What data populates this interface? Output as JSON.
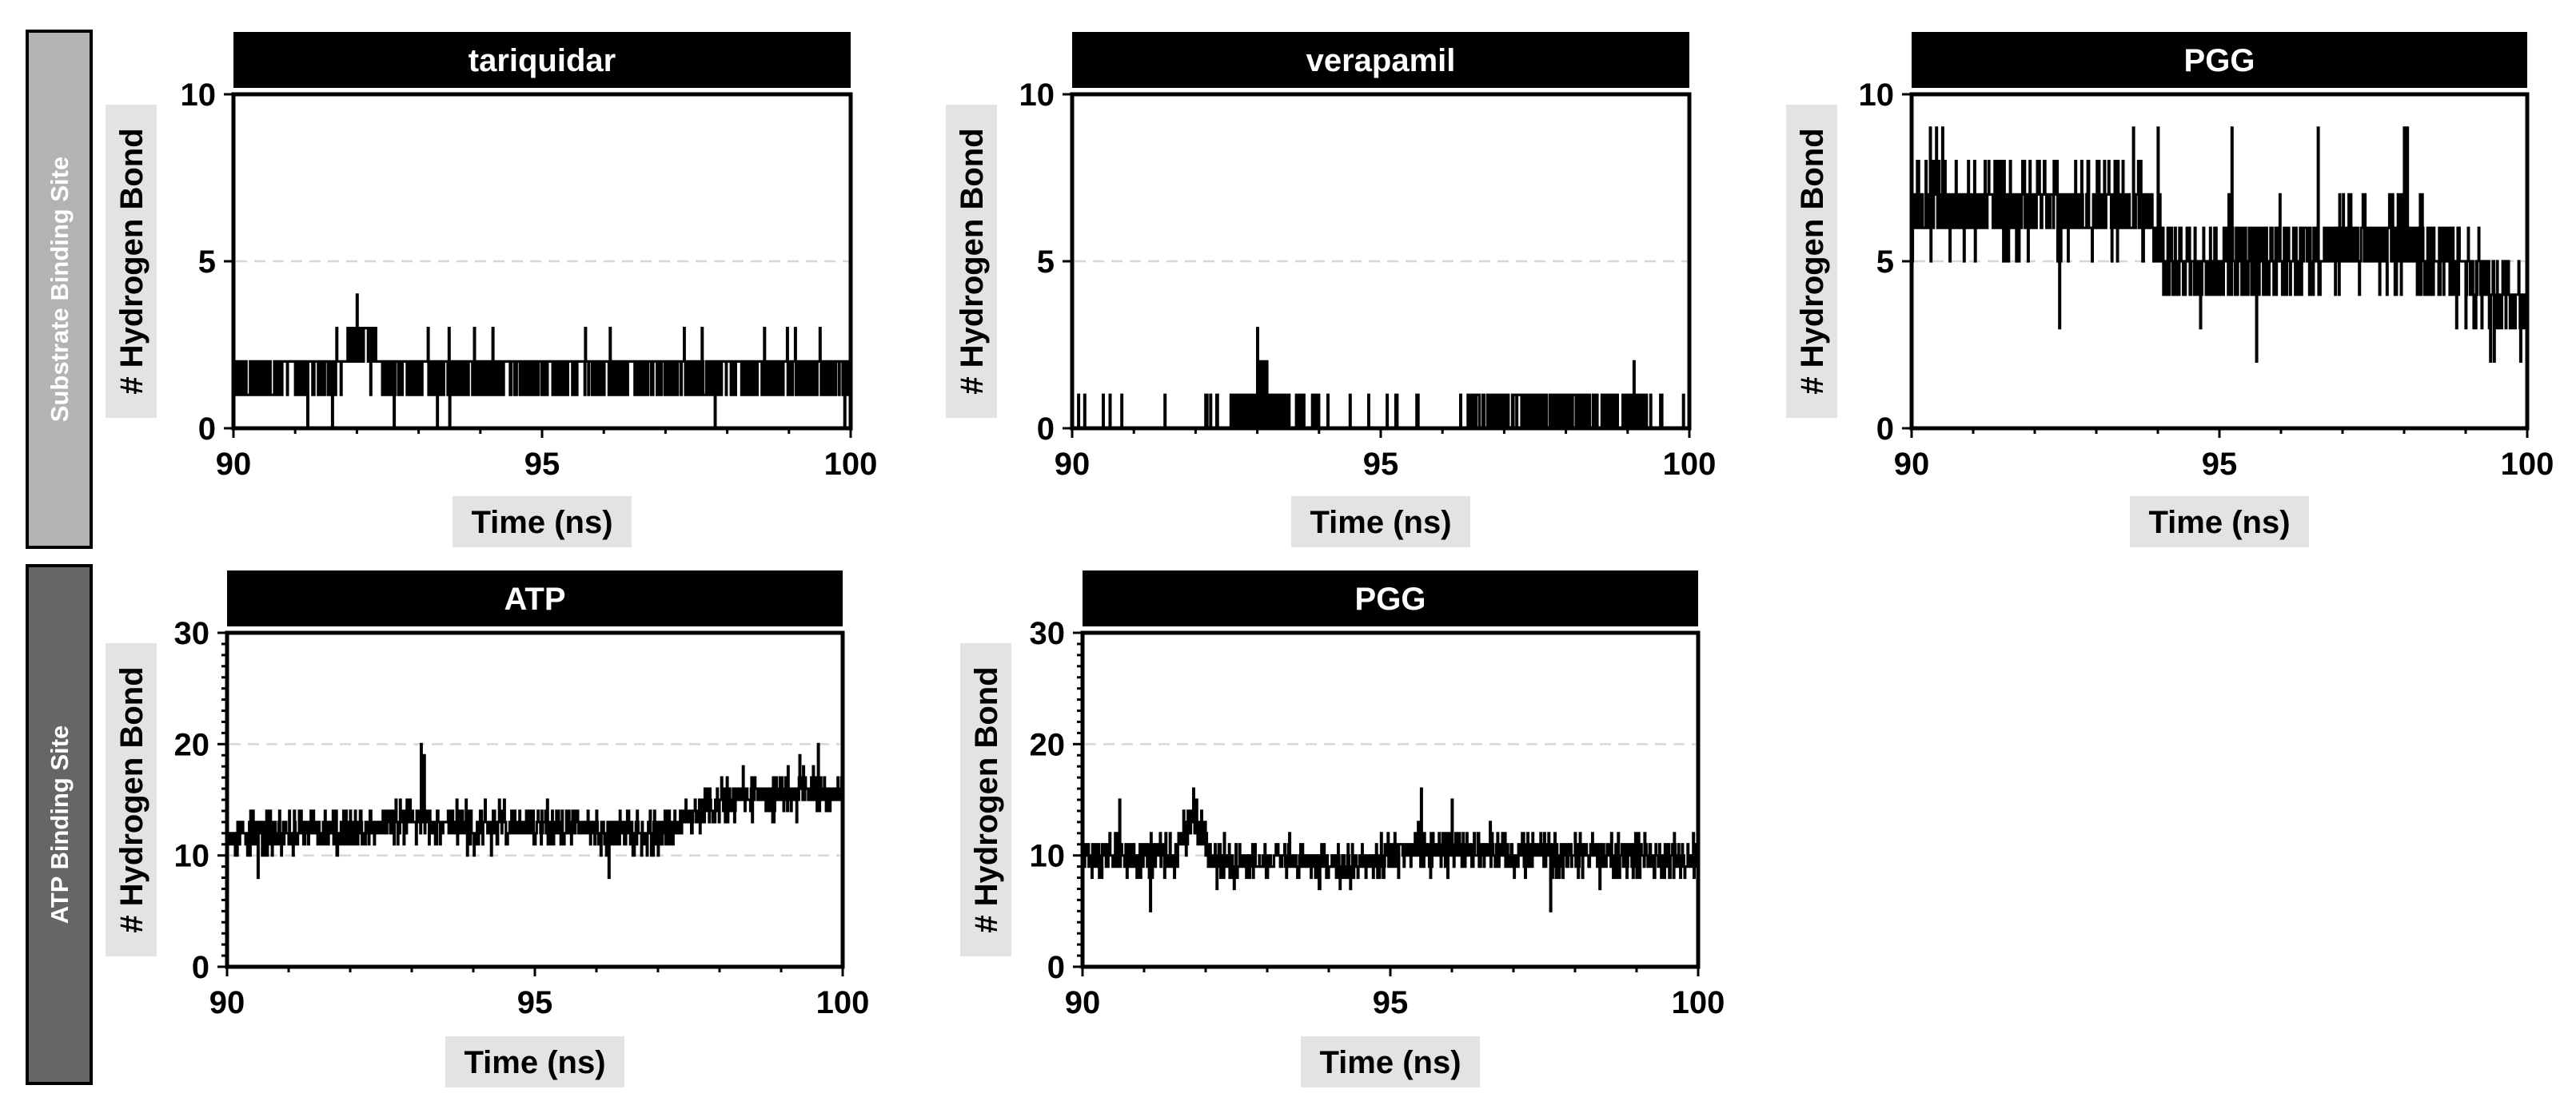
{
  "figure": {
    "rows": [
      {
        "label": "Substrate Binding Site",
        "color": "#b3b3b3"
      },
      {
        "label": "ATP Binding Site",
        "color": "#666666"
      }
    ]
  },
  "chart_data": [
    {
      "type": "line",
      "row": "Substrate Binding Site",
      "title": "tariquidar",
      "xlabel": "Time (ns)",
      "ylabel": "# Hydrogen Bond",
      "xlim": [
        90,
        100
      ],
      "ylim": [
        0,
        10
      ],
      "xticks": [
        90,
        95,
        100
      ],
      "yticks": [
        0,
        5,
        10
      ],
      "y_minor_step": 0,
      "grid_y": [
        5
      ],
      "series": [
        {
          "name": "tariquidar",
          "x_start": 90,
          "x_step": 0.01,
          "base": [
            [
              90,
              1.6
            ],
            [
              91.8,
              1.7
            ],
            [
              92.1,
              2.6
            ],
            [
              92.4,
              1.7
            ],
            [
              100,
              1.6
            ]
          ],
          "noise": 0.7,
          "min": 0,
          "max": 4,
          "seed": 11,
          "spikes": [
            [
              91.85,
              3
            ],
            [
              92,
              4
            ],
            [
              92.15,
              3
            ],
            [
              92.3,
              3
            ],
            [
              91.2,
              0
            ],
            [
              91.6,
              0
            ],
            [
              92.6,
              0
            ],
            [
              93.3,
              0
            ],
            [
              93.5,
              0
            ],
            [
              93.9,
              3
            ],
            [
              94.2,
              3
            ],
            [
              95.7,
              3
            ],
            [
              96.1,
              3
            ],
            [
              97.3,
              3
            ],
            [
              97.8,
              0
            ],
            [
              98.6,
              3
            ],
            [
              99.1,
              3
            ],
            [
              99.5,
              3
            ],
            [
              99.9,
              0
            ],
            [
              100,
              3
            ]
          ]
        }
      ]
    },
    {
      "type": "line",
      "row": "Substrate Binding Site",
      "title": "verapamil",
      "xlabel": "Time (ns)",
      "ylabel": "# Hydrogen Bond",
      "xlim": [
        90,
        100
      ],
      "ylim": [
        0,
        10
      ],
      "xticks": [
        90,
        95,
        100
      ],
      "yticks": [
        0,
        5,
        10
      ],
      "y_minor_step": 0,
      "grid_y": [
        5
      ],
      "series": [
        {
          "name": "verapamil",
          "x_start": 90,
          "x_step": 0.01,
          "base": [
            [
              90,
              0
            ],
            [
              92.1,
              0
            ],
            [
              92.2,
              0.3
            ],
            [
              93.9,
              0.4
            ],
            [
              94.2,
              0
            ],
            [
              96.2,
              0
            ],
            [
              96.4,
              0.5
            ],
            [
              99.3,
              0.5
            ],
            [
              99.5,
              0
            ],
            [
              100,
              0
            ]
          ],
          "noise": 0.45,
          "min": 0,
          "max": 3,
          "seed": 23,
          "spikes": [
            [
              90.1,
              1
            ],
            [
              90.2,
              1
            ],
            [
              90.5,
              1
            ],
            [
              90.8,
              1
            ],
            [
              91.5,
              1
            ],
            [
              92.9,
              1
            ],
            [
              93,
              3
            ],
            [
              93.05,
              2
            ],
            [
              93.1,
              2
            ],
            [
              93.15,
              2
            ],
            [
              93.5,
              1
            ],
            [
              94.5,
              1
            ],
            [
              95.1,
              1
            ],
            [
              95.6,
              1
            ],
            [
              97.3,
              1
            ],
            [
              98.5,
              1
            ],
            [
              99.1,
              2
            ],
            [
              99.9,
              1
            ]
          ]
        }
      ]
    },
    {
      "type": "line",
      "row": "Substrate Binding Site",
      "title": "PGG",
      "xlabel": "Time (ns)",
      "ylabel": "# Hydrogen Bond",
      "xlim": [
        90,
        100
      ],
      "ylim": [
        0,
        10
      ],
      "xticks": [
        90,
        95,
        100
      ],
      "yticks": [
        0,
        5,
        10
      ],
      "y_minor_step": 0,
      "grid_y": [
        5
      ],
      "series": [
        {
          "name": "PGG",
          "x_start": 90,
          "x_step": 0.01,
          "base": [
            [
              90,
              6.6
            ],
            [
              93,
              6.5
            ],
            [
              93.4,
              7
            ],
            [
              93.9,
              6.3
            ],
            [
              94.1,
              5
            ],
            [
              96,
              5
            ],
            [
              97,
              5.6
            ],
            [
              98,
              5.7
            ],
            [
              99,
              4.7
            ],
            [
              100,
              3.8
            ]
          ],
          "noise": 1.4,
          "min": 2,
          "max": 9,
          "seed": 37,
          "spikes": [
            [
              90.3,
              9
            ],
            [
              90.4,
              9
            ],
            [
              90.5,
              9
            ],
            [
              91.5,
              8
            ],
            [
              92.4,
              3
            ],
            [
              93.3,
              8
            ],
            [
              93.6,
              9
            ],
            [
              94,
              9
            ],
            [
              95.2,
              9
            ],
            [
              95.6,
              2
            ],
            [
              96.6,
              9
            ],
            [
              98,
              9
            ],
            [
              98.05,
              9
            ],
            [
              99.4,
              2
            ],
            [
              100,
              2
            ]
          ]
        }
      ]
    },
    {
      "type": "line",
      "row": "ATP Binding Site",
      "title": "ATP",
      "xlabel": "Time (ns)",
      "ylabel": "# Hydrogen Bond",
      "xlim": [
        90,
        100
      ],
      "ylim": [
        0,
        30
      ],
      "xticks": [
        90,
        95,
        100
      ],
      "yticks": [
        0,
        10,
        20,
        30
      ],
      "y_minor_step": 1,
      "grid_y": [
        10,
        20
      ],
      "series": [
        {
          "name": "ATP",
          "x_start": 90,
          "x_step": 0.01,
          "base": [
            [
              90,
              11.8
            ],
            [
              92.3,
              12.5
            ],
            [
              93.2,
              13.2
            ],
            [
              94,
              12.5
            ],
            [
              95.5,
              12.6
            ],
            [
              96.5,
              12
            ],
            [
              97.2,
              12.3
            ],
            [
              97.7,
              14.5
            ],
            [
              98.5,
              15.2
            ],
            [
              99.4,
              16
            ],
            [
              100,
              15.5
            ]
          ],
          "noise": 1.9,
          "min": 8,
          "max": 20,
          "seed": 53,
          "spikes": [
            [
              93.15,
              20
            ],
            [
              93.2,
              19
            ],
            [
              99.6,
              20
            ],
            [
              99.3,
              19
            ],
            [
              96.2,
              8
            ],
            [
              90.5,
              8
            ]
          ]
        }
      ]
    },
    {
      "type": "line",
      "row": "ATP Binding Site",
      "title": "PGG",
      "xlabel": "Time (ns)",
      "ylabel": "# Hydrogen Bond",
      "xlim": [
        90,
        100
      ],
      "ylim": [
        0,
        30
      ],
      "xticks": [
        90,
        95,
        100
      ],
      "yticks": [
        0,
        10,
        20,
        30
      ],
      "y_minor_step": 1,
      "grid_y": [
        10,
        20
      ],
      "series": [
        {
          "name": "PGG",
          "x_start": 90,
          "x_step": 0.01,
          "base": [
            [
              90,
              10
            ],
            [
              91.5,
              9.8
            ],
            [
              91.75,
              13
            ],
            [
              91.95,
              12.5
            ],
            [
              92.1,
              9.3
            ],
            [
              94.5,
              9.4
            ],
            [
              95,
              10.2
            ],
            [
              96,
              10.5
            ],
            [
              97.5,
              10
            ],
            [
              100,
              9.8
            ]
          ],
          "noise": 1.9,
          "min": 5,
          "max": 16,
          "seed": 71,
          "spikes": [
            [
              91.8,
              16
            ],
            [
              91.85,
              15
            ],
            [
              95.5,
              16
            ],
            [
              96,
              15
            ],
            [
              91.1,
              5
            ],
            [
              97.6,
              5
            ],
            [
              90.6,
              15
            ]
          ]
        }
      ]
    }
  ]
}
